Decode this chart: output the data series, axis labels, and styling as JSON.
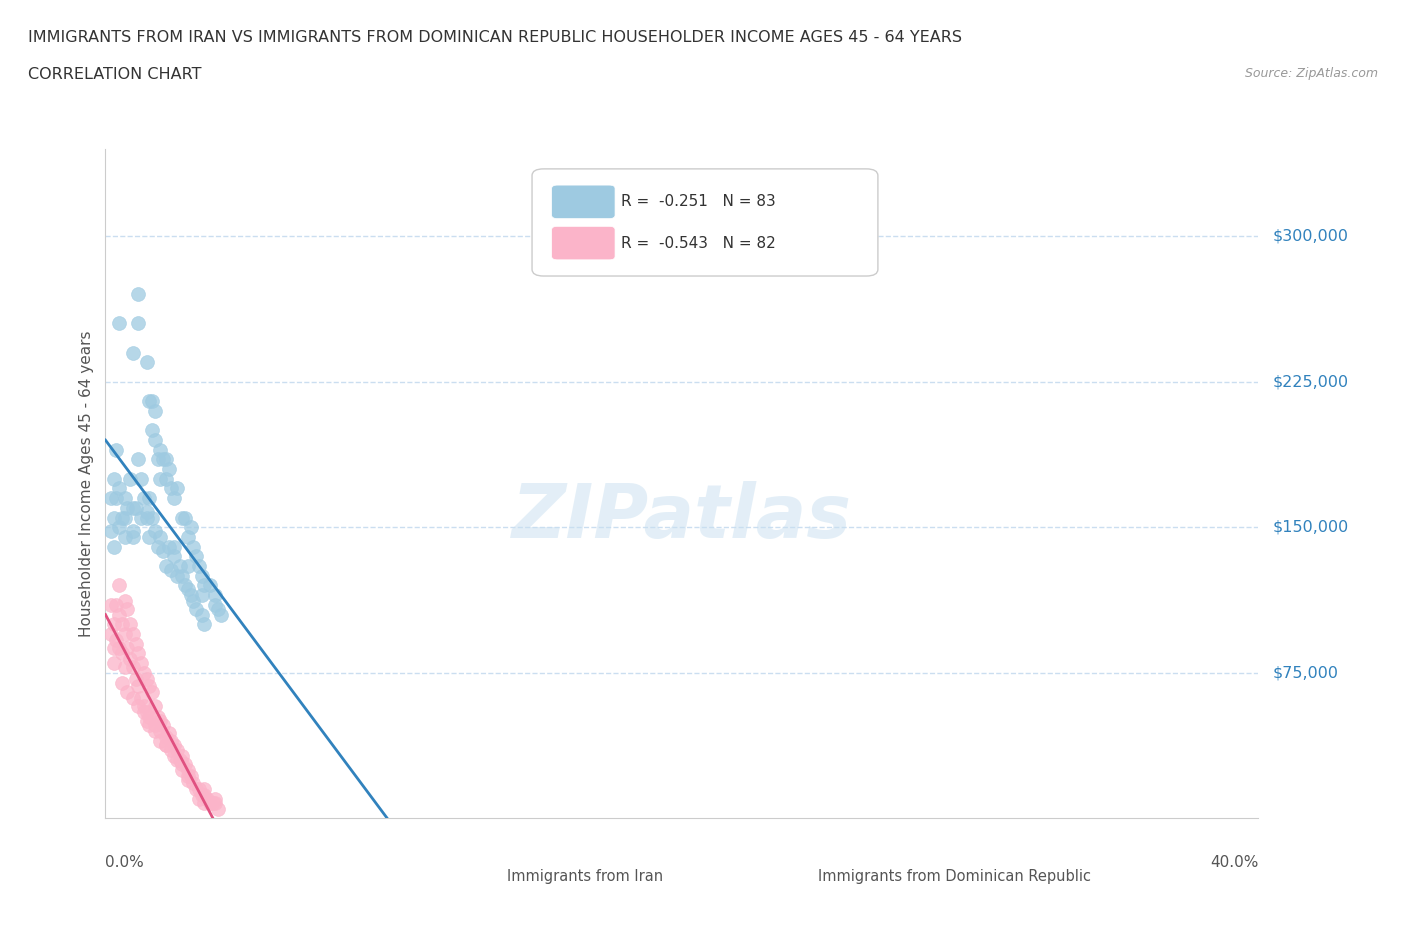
{
  "title_line1": "IMMIGRANTS FROM IRAN VS IMMIGRANTS FROM DOMINICAN REPUBLIC HOUSEHOLDER INCOME AGES 45 - 64 YEARS",
  "title_line2": "CORRELATION CHART",
  "source": "Source: ZipAtlas.com",
  "ylabel": "Householder Income Ages 45 - 64 years",
  "iran_R": -0.251,
  "iran_N": 83,
  "dr_R": -0.543,
  "dr_N": 82,
  "iran_color": "#9ecae1",
  "dr_color": "#fbb4c9",
  "iran_line_color": "#3182bd",
  "dr_line_color": "#e05080",
  "gridline_color": "#c6dbef",
  "y_ticks": [
    75000,
    150000,
    225000,
    300000
  ],
  "y_tick_labels": [
    "$75,000",
    "$150,000",
    "$225,000",
    "$300,000"
  ],
  "ylim": [
    0,
    345000
  ],
  "xlim": [
    0.0,
    0.42
  ],
  "watermark": "ZIPatlas",
  "legend_iran_label": "Immigrants from Iran",
  "legend_dr_label": "Immigrants from Dominican Republic",
  "iran_x": [
    0.005,
    0.01,
    0.012,
    0.012,
    0.015,
    0.016,
    0.017,
    0.017,
    0.018,
    0.018,
    0.019,
    0.02,
    0.02,
    0.021,
    0.022,
    0.022,
    0.023,
    0.024,
    0.025,
    0.026,
    0.028,
    0.029,
    0.03,
    0.031,
    0.032,
    0.033,
    0.034,
    0.035,
    0.038,
    0.04,
    0.003,
    0.003,
    0.004,
    0.005,
    0.005,
    0.006,
    0.007,
    0.007,
    0.008,
    0.009,
    0.01,
    0.01,
    0.011,
    0.012,
    0.013,
    0.013,
    0.014,
    0.015,
    0.016,
    0.016,
    0.017,
    0.018,
    0.019,
    0.02,
    0.021,
    0.022,
    0.023,
    0.024,
    0.025,
    0.026,
    0.027,
    0.028,
    0.029,
    0.03,
    0.031,
    0.032,
    0.033,
    0.035,
    0.036,
    0.002,
    0.002,
    0.003,
    0.004,
    0.007,
    0.01,
    0.015,
    0.025,
    0.03,
    0.035,
    0.036,
    0.04,
    0.041,
    0.042
  ],
  "iran_y": [
    255000,
    240000,
    270000,
    255000,
    235000,
    215000,
    200000,
    215000,
    195000,
    210000,
    185000,
    175000,
    190000,
    185000,
    175000,
    185000,
    180000,
    170000,
    165000,
    170000,
    155000,
    155000,
    145000,
    150000,
    140000,
    135000,
    130000,
    125000,
    120000,
    115000,
    155000,
    140000,
    165000,
    150000,
    170000,
    155000,
    165000,
    145000,
    160000,
    175000,
    160000,
    145000,
    160000,
    185000,
    175000,
    155000,
    165000,
    155000,
    165000,
    145000,
    155000,
    148000,
    140000,
    145000,
    138000,
    130000,
    140000,
    128000,
    135000,
    125000,
    130000,
    125000,
    120000,
    118000,
    115000,
    112000,
    108000,
    105000,
    100000,
    165000,
    148000,
    175000,
    190000,
    155000,
    148000,
    158000,
    140000,
    130000,
    115000,
    120000,
    110000,
    108000,
    105000
  ],
  "dr_x": [
    0.003,
    0.003,
    0.004,
    0.004,
    0.005,
    0.005,
    0.005,
    0.006,
    0.006,
    0.007,
    0.007,
    0.007,
    0.008,
    0.008,
    0.009,
    0.009,
    0.01,
    0.01,
    0.011,
    0.011,
    0.012,
    0.012,
    0.013,
    0.013,
    0.014,
    0.014,
    0.015,
    0.015,
    0.016,
    0.016,
    0.017,
    0.018,
    0.018,
    0.019,
    0.02,
    0.02,
    0.021,
    0.022,
    0.022,
    0.023,
    0.024,
    0.025,
    0.025,
    0.026,
    0.027,
    0.028,
    0.028,
    0.029,
    0.03,
    0.03,
    0.031,
    0.032,
    0.033,
    0.034,
    0.034,
    0.035,
    0.036,
    0.036,
    0.037,
    0.038,
    0.039,
    0.04,
    0.041,
    0.002,
    0.002,
    0.003,
    0.006,
    0.008,
    0.01,
    0.012,
    0.014,
    0.015,
    0.016,
    0.018,
    0.02,
    0.022,
    0.024,
    0.026,
    0.028,
    0.03,
    0.036,
    0.04
  ],
  "dr_y": [
    100000,
    88000,
    110000,
    92000,
    120000,
    105000,
    88000,
    100000,
    85000,
    112000,
    95000,
    78000,
    108000,
    88000,
    100000,
    82000,
    95000,
    78000,
    90000,
    72000,
    85000,
    68000,
    80000,
    62000,
    75000,
    58000,
    72000,
    55000,
    68000,
    52000,
    65000,
    58000,
    48000,
    52000,
    50000,
    45000,
    48000,
    42000,
    38000,
    44000,
    40000,
    38000,
    32000,
    35000,
    30000,
    32000,
    25000,
    28000,
    25000,
    20000,
    22000,
    18000,
    15000,
    15000,
    10000,
    12000,
    12000,
    8000,
    10000,
    8000,
    8000,
    8000,
    5000,
    110000,
    95000,
    80000,
    70000,
    65000,
    62000,
    58000,
    55000,
    50000,
    48000,
    45000,
    40000,
    38000,
    35000,
    30000,
    28000,
    22000,
    15000,
    10000
  ]
}
